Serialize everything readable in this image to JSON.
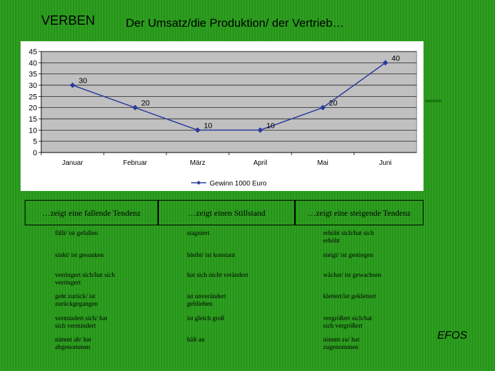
{
  "slide": {
    "title_left": "VERBEN",
    "title_main": "Der Umsatz/die Produktion/ der Vertrieb…",
    "footer_logo": "EFOS"
  },
  "chart_data": {
    "type": "line",
    "categories": [
      "Januar",
      "Februar",
      "März",
      "April",
      "Mai",
      "Juni"
    ],
    "series": [
      {
        "name": "Gewinn 1000 Euro",
        "values": [
          30,
          20,
          10,
          10,
          20,
          40
        ]
      }
    ],
    "ylim": [
      0,
      45
    ],
    "yticks": [
      0,
      5,
      10,
      15,
      20,
      25,
      30,
      35,
      40,
      45
    ],
    "grid": true,
    "legend": "bottom",
    "data_labels": true,
    "colors": {
      "line": "#2a3a9c",
      "plot_bg": "#c0c0c0",
      "legend_marker": "#2a3a9c"
    }
  },
  "table": {
    "headers": [
      "…zeigt eine fallende Tendenz",
      "…zeigt einen Stillstand",
      "…zeigt eine steigende Tendenz"
    ],
    "rows": [
      [
        "fällt/ ist gefallen",
        "stagniert",
        "erhöht sich/hat sich erhöht"
      ],
      [
        "sinkt/ ist gesunken",
        "bleibt/ ist konstant",
        "steigt/ ist gestiegen"
      ],
      [
        "verringert sich/hat sich verringert",
        "hat sich nicht verändert",
        "wächst/ ist gewachsen"
      ],
      [
        "geht zurück/ ist zurückgegangen",
        "ist unverändert geblieben",
        "klettert/ist geklettert"
      ],
      [
        "vermindert sich/ hat sich vermindert",
        "ist gleich groß",
        "vergrößert sich/hat sich vergrößert"
      ],
      [
        "nimmt ab/ hat abgenommen",
        "hält an",
        "nimmt zu/ hat zugenommen"
      ]
    ]
  }
}
